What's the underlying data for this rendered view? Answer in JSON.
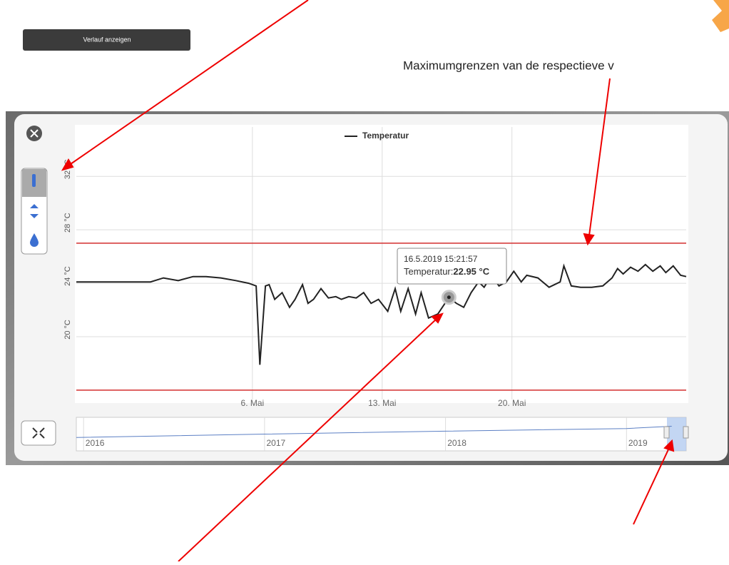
{
  "button": "Verlauf anzeigen",
  "annotation": "Maximumgrenzen van de respectieve v",
  "tooltip": {
    "time": "16.5.2019 15:21:57",
    "label": "Temperatur:",
    "value": "22.95 °C"
  },
  "chart_data": [
    {
      "type": "line",
      "series": [
        {
          "name": "Temperatur",
          "color": "#222222",
          "x": [
            -3.5,
            0.5,
            1.2,
            2.0,
            2.8,
            3.5,
            4.3,
            5.1,
            5.8,
            6.2,
            6.4,
            6.7,
            6.9,
            7.2,
            7.6,
            8.0,
            8.3,
            8.7,
            9.0,
            9.3,
            9.7,
            10.1,
            10.5,
            10.8,
            11.2,
            11.6,
            12.0,
            12.4,
            12.8,
            13.3,
            13.7,
            14.0,
            14.4,
            14.8,
            15.1,
            15.5,
            16.0,
            16.6,
            17.0,
            17.4,
            17.8,
            18.2,
            18.5,
            18.9,
            19.3,
            19.7,
            20.1,
            20.5,
            20.8,
            21.4,
            22.0,
            22.6,
            22.8,
            23.2,
            23.7,
            24.3,
            24.9,
            25.4,
            25.7,
            26.0,
            26.4,
            26.8,
            27.2,
            27.6,
            28.0,
            28.3,
            28.7,
            29.1,
            29.4
          ],
          "values": [
            24.1,
            24.1,
            24.4,
            24.2,
            24.5,
            24.5,
            24.4,
            24.2,
            24.0,
            23.8,
            17.9,
            23.8,
            23.9,
            22.8,
            23.3,
            22.2,
            22.8,
            23.9,
            22.5,
            22.8,
            23.6,
            22.9,
            23.0,
            22.8,
            23.0,
            22.9,
            23.3,
            22.5,
            22.8,
            21.9,
            23.6,
            21.9,
            23.6,
            21.7,
            23.3,
            21.4,
            21.7,
            22.95,
            22.5,
            22.2,
            23.3,
            24.1,
            23.7,
            24.6,
            23.8,
            24.1,
            24.9,
            24.1,
            24.6,
            24.4,
            23.7,
            24.1,
            25.3,
            23.8,
            23.7,
            23.7,
            23.8,
            24.4,
            25.1,
            24.7,
            25.2,
            24.9,
            25.4,
            24.9,
            25.3,
            24.8,
            25.3,
            24.6,
            24.5
          ]
        }
      ],
      "tooltip_index": 37,
      "xlim": [
        -3.5,
        29.4
      ],
      "xticks": [
        {
          "value": 6,
          "label": "6. Mai"
        },
        {
          "value": 13,
          "label": "13. Mai"
        },
        {
          "value": 20,
          "label": "20. Mai"
        }
      ],
      "ylim": [
        15.3,
        35.7
      ],
      "yticks": [
        {
          "value": 20,
          "label": "20 °C"
        },
        {
          "value": 24,
          "label": "24 °C"
        },
        {
          "value": 28,
          "label": "28 °C"
        },
        {
          "value": 32,
          "label": "32 °C"
        }
      ],
      "thresholds": [
        27,
        16
      ],
      "threshold_color": "#d32f2f",
      "grid": true
    },
    {
      "type": "line",
      "series": [
        {
          "color": "#5b7fc4",
          "x": [
            2015.96,
            2017,
            2018,
            2019,
            2019.25
          ],
          "values": [
            21,
            22.5,
            23.8,
            25,
            26
          ]
        }
      ],
      "xlim": [
        2015.96,
        2019.33
      ],
      "xticks": [
        2016,
        2017,
        2018,
        2019
      ],
      "ylim": [
        15,
        30
      ]
    }
  ]
}
